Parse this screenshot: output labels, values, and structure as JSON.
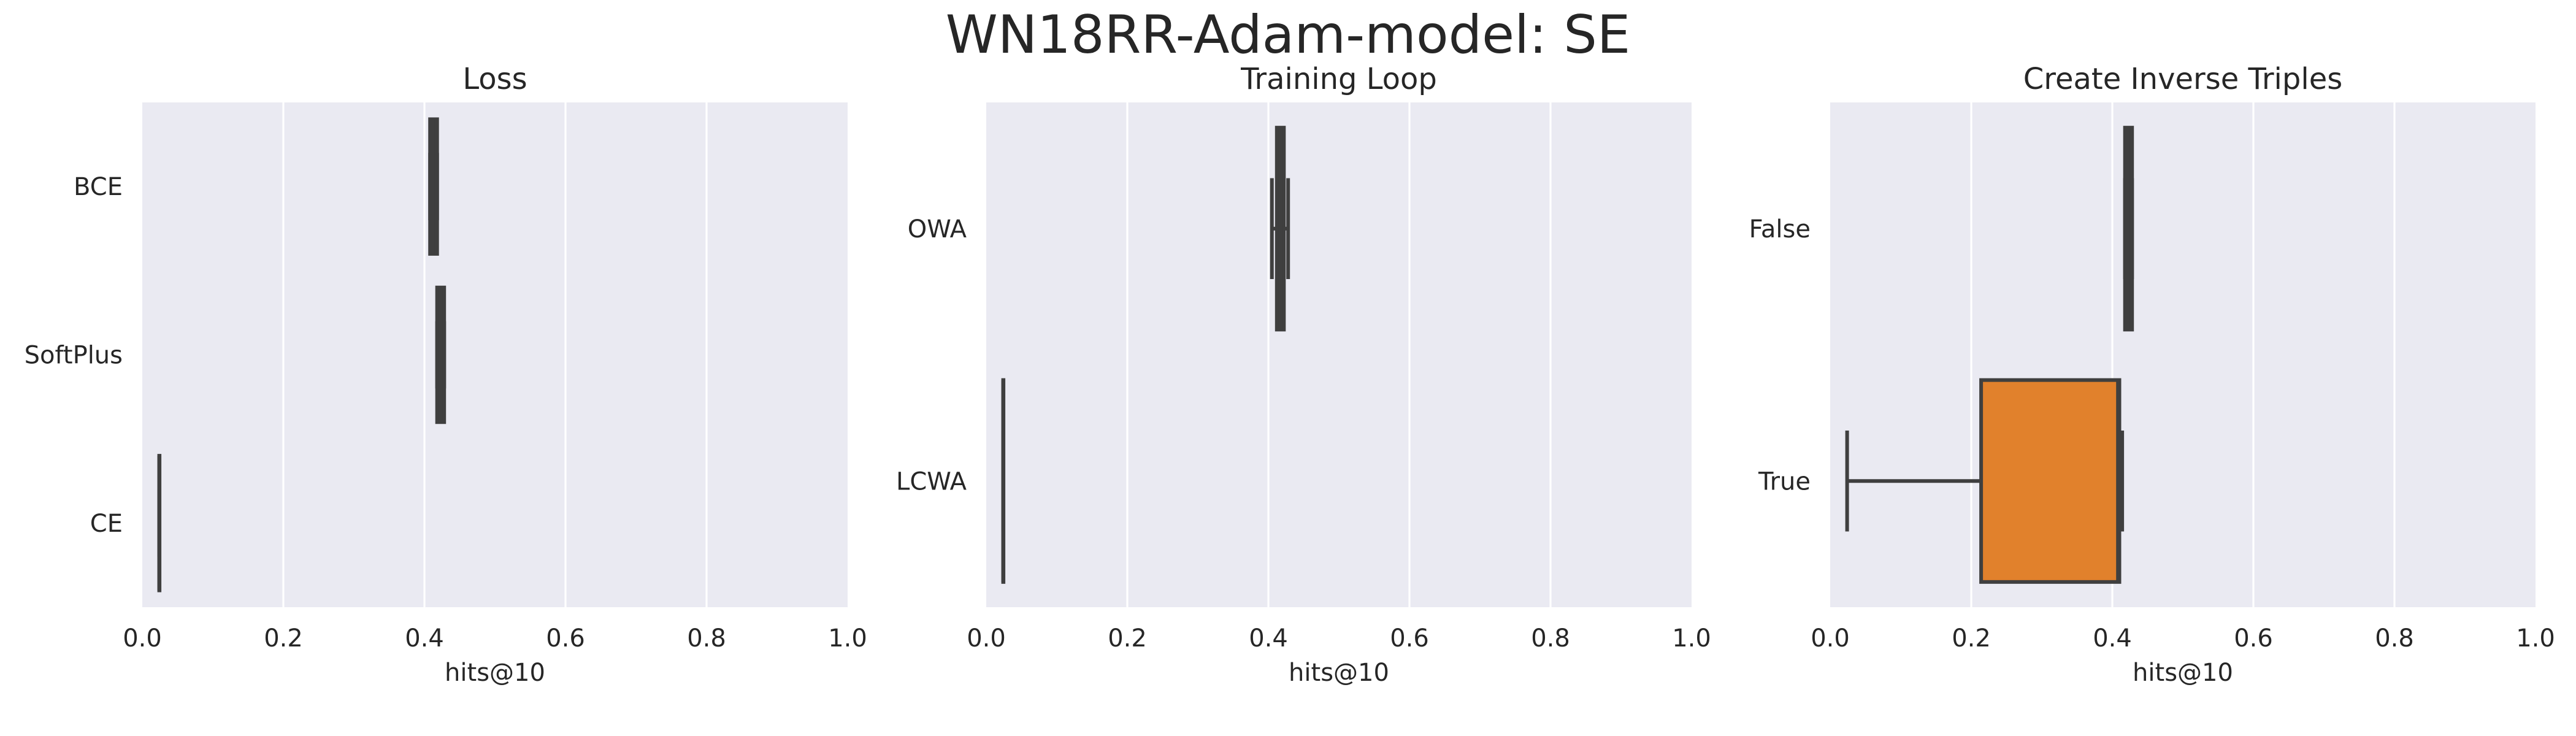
{
  "figure_title": "WN18RR-Adam-model: SE",
  "chart_data": [
    {
      "type": "box",
      "orientation": "horizontal",
      "title": "Loss",
      "xlabel": "hits@10",
      "ylabel": "",
      "xlim": [
        0.0,
        1.0
      ],
      "xticks": [
        0.0,
        0.2,
        0.4,
        0.6,
        0.8,
        1.0
      ],
      "xtick_labels": [
        "0.0",
        "0.2",
        "0.4",
        "0.6",
        "0.8",
        "1.0"
      ],
      "grid": true,
      "categories": [
        "BCE",
        "SoftPlus",
        "CE"
      ],
      "boxes": [
        {
          "category": "BCE",
          "whisker_low": 0.408,
          "q1": 0.408,
          "median": 0.412,
          "q3": 0.418,
          "whisker_high": 0.418,
          "color": "#3f3f3f"
        },
        {
          "category": "SoftPlus",
          "whisker_low": 0.418,
          "q1": 0.418,
          "median": 0.422,
          "q3": 0.428,
          "whisker_high": 0.428,
          "color": "#3f3f3f"
        },
        {
          "category": "CE",
          "whisker_low": 0.024,
          "q1": 0.024,
          "median": 0.024,
          "q3": 0.024,
          "whisker_high": 0.024,
          "color": "#3f3f3f"
        }
      ]
    },
    {
      "type": "box",
      "orientation": "horizontal",
      "title": "Training Loop",
      "xlabel": "hits@10",
      "ylabel": "",
      "xlim": [
        0.0,
        1.0
      ],
      "xticks": [
        0.0,
        0.2,
        0.4,
        0.6,
        0.8,
        1.0
      ],
      "xtick_labels": [
        "0.0",
        "0.2",
        "0.4",
        "0.6",
        "0.8",
        "1.0"
      ],
      "grid": true,
      "categories": [
        "OWA",
        "LCWA"
      ],
      "boxes": [
        {
          "category": "OWA",
          "whisker_low": 0.405,
          "q1": 0.412,
          "median": 0.418,
          "q3": 0.422,
          "whisker_high": 0.428,
          "color": "#3f3f3f"
        },
        {
          "category": "LCWA",
          "whisker_low": 0.024,
          "q1": 0.024,
          "median": 0.024,
          "q3": 0.024,
          "whisker_high": 0.024,
          "color": "#3f3f3f"
        }
      ]
    },
    {
      "type": "box",
      "orientation": "horizontal",
      "title": "Create Inverse Triples",
      "xlabel": "hits@10",
      "ylabel": "",
      "xlim": [
        0.0,
        1.0
      ],
      "xticks": [
        0.0,
        0.2,
        0.4,
        0.6,
        0.8,
        1.0
      ],
      "xtick_labels": [
        "0.0",
        "0.2",
        "0.4",
        "0.6",
        "0.8",
        "1.0"
      ],
      "grid": true,
      "categories": [
        "False",
        "True"
      ],
      "boxes": [
        {
          "category": "False",
          "whisker_low": 0.418,
          "q1": 0.418,
          "median": 0.422,
          "q3": 0.428,
          "whisker_high": 0.428,
          "color": "#3f3f3f"
        },
        {
          "category": "True",
          "whisker_low": 0.024,
          "q1": 0.214,
          "median": 0.408,
          "q3": 0.41,
          "whisker_high": 0.414,
          "color": "#e1812c"
        }
      ]
    }
  ]
}
